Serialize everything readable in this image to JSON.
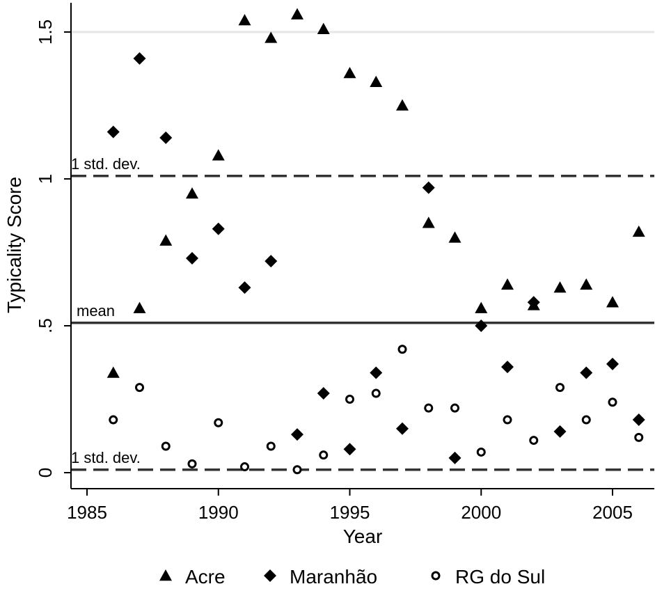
{
  "chart_data": {
    "type": "scatter",
    "title": "",
    "xlabel": "Year",
    "ylabel": "Typicality Score",
    "xlim": [
      1984.5,
      2006.8
    ],
    "ylim": [
      -0.05,
      1.6
    ],
    "x_ticks": [
      1985,
      1990,
      1995,
      2000,
      2005
    ],
    "x_tick_labels": [
      "1985",
      "1990",
      "1995",
      "2000",
      "2005"
    ],
    "y_ticks": [
      0,
      0.5,
      1,
      1.5
    ],
    "y_tick_labels": [
      "0",
      ".5",
      "1",
      "1.5"
    ],
    "grid": "horizontal at 1.5",
    "legend_position": "bottom",
    "reference_lines": [
      {
        "label": "mean",
        "value": 0.51,
        "style": "solid"
      },
      {
        "label": "1 std. dev.",
        "value": 1.01,
        "style": "dashed"
      },
      {
        "label": "1 std. dev.",
        "value": 0.01,
        "style": "dashed"
      }
    ],
    "series": [
      {
        "name": "Acre",
        "marker": "triangle",
        "x": [
          1986,
          1987,
          1988,
          1989,
          1990,
          1991,
          1992,
          1993,
          1994,
          1995,
          1996,
          1997,
          1998,
          1999,
          2000,
          2001,
          2002,
          2003,
          2004,
          2005,
          2006
        ],
        "y": [
          0.34,
          0.56,
          0.79,
          0.95,
          1.08,
          1.54,
          1.48,
          1.56,
          1.51,
          1.36,
          1.33,
          1.25,
          0.85,
          0.8,
          0.56,
          0.64,
          0.57,
          0.63,
          0.64,
          0.58,
          0.82
        ]
      },
      {
        "name": "Maranhão",
        "marker": "diamond",
        "x": [
          1986,
          1987,
          1988,
          1989,
          1990,
          1991,
          1992,
          1993,
          1994,
          1995,
          1996,
          1997,
          1998,
          1999,
          2000,
          2001,
          2002,
          2003,
          2004,
          2005,
          2006
        ],
        "y": [
          1.16,
          1.41,
          1.14,
          0.73,
          0.83,
          0.63,
          0.72,
          0.13,
          0.27,
          0.08,
          0.34,
          0.15,
          0.97,
          0.05,
          0.5,
          0.36,
          0.58,
          0.14,
          0.34,
          0.37,
          0.18
        ]
      },
      {
        "name": "RG do Sul",
        "marker": "circle",
        "x": [
          1986,
          1987,
          1988,
          1989,
          1990,
          1991,
          1992,
          1993,
          1994,
          1995,
          1996,
          1997,
          1998,
          1999,
          2000,
          2001,
          2002,
          2003,
          2004,
          2005,
          2006
        ],
        "y": [
          0.18,
          0.29,
          0.09,
          0.03,
          0.17,
          0.02,
          0.09,
          0.01,
          0.06,
          0.25,
          0.27,
          0.42,
          0.22,
          0.22,
          0.07,
          0.18,
          0.11,
          0.29,
          0.18,
          0.24,
          0.12
        ]
      }
    ]
  }
}
